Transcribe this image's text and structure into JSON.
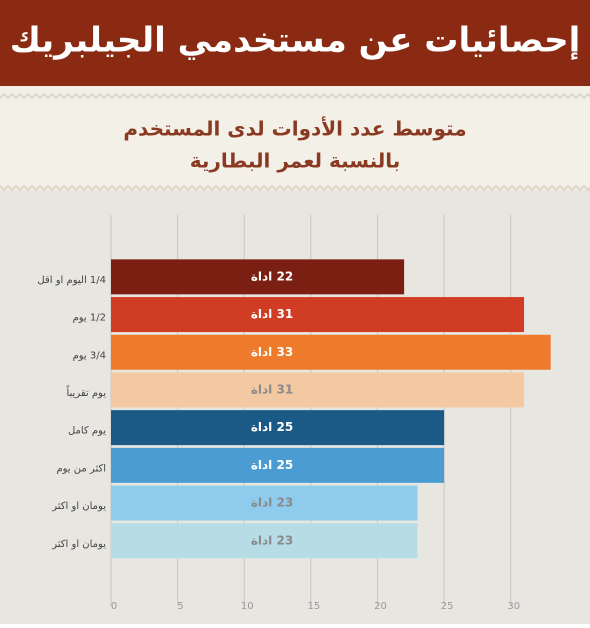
{
  "chart_data": {
    "type": "bar",
    "orientation": "horizontal",
    "title": "إحصائيات عن مستخدمي الجيلبريك",
    "subtitle": [
      "متوسط عدد الأدوات لدى المستخدم",
      "بالنسبة لعمر البطارية"
    ],
    "categories": [
      "1/4  اليوم او اقل",
      "1/2 يوم",
      "3/4 يوم",
      "يوم تقريباً",
      "يوم كامل",
      "اكثر من يوم",
      "يومان او اكثر",
      "يومان او اكثر"
    ],
    "values": [
      22,
      31,
      33,
      31,
      25,
      25,
      23,
      23
    ],
    "value_labels": [
      "22 اداة",
      "31 اداة",
      "33 اداة",
      "31 اداة",
      "25 اداة",
      "25 اداة",
      "23 اداة",
      "23 اداة"
    ],
    "colors": [
      "#7b1f12",
      "#d13d24",
      "#ee7a2c",
      "#f2c9a2",
      "#1b5a86",
      "#4a9cd2",
      "#8ecbec",
      "#b6dce6"
    ],
    "xlim": [
      0,
      34
    ],
    "xticks": [
      0,
      5,
      10,
      15,
      20,
      25,
      30
    ],
    "grid": true
  }
}
